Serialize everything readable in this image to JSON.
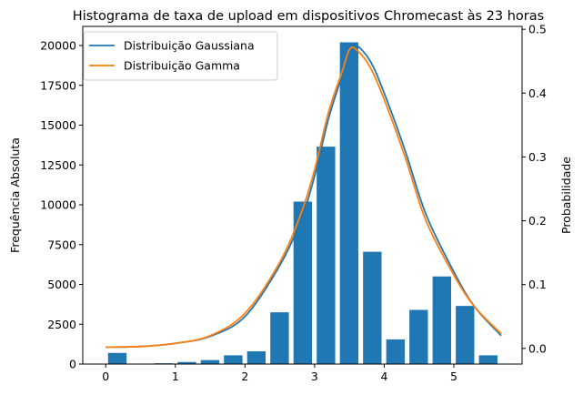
{
  "chart_data": {
    "type": "bar",
    "title": "Histograma de taxa de upload em dispositivos Chromecast às 23 horas",
    "xlabel": "",
    "ylabel": "Frequência Absoluta",
    "y2label": "Probabilidade",
    "xlim": [
      -0.33,
      5.98
    ],
    "ylim": [
      0,
      21200
    ],
    "y2lim": [
      -0.0245,
      0.5045
    ],
    "x_ticks": [
      0,
      1,
      2,
      3,
      4,
      5
    ],
    "y_ticks": [
      0,
      2500,
      5000,
      7500,
      10000,
      12500,
      15000,
      17500,
      20000
    ],
    "y2_ticks": [
      0.0,
      0.1,
      0.2,
      0.3,
      0.4,
      0.5
    ],
    "grid": false,
    "legend_position": "top-left",
    "bar_width": 0.266,
    "histogram": {
      "color": "#1f77b4",
      "bars": [
        {
          "x": 0.166,
          "value": 700
        },
        {
          "x": 0.832,
          "value": 50
        },
        {
          "x": 1.165,
          "value": 130
        },
        {
          "x": 1.498,
          "value": 250
        },
        {
          "x": 1.831,
          "value": 550
        },
        {
          "x": 2.164,
          "value": 800
        },
        {
          "x": 2.497,
          "value": 3250
        },
        {
          "x": 2.83,
          "value": 10200
        },
        {
          "x": 3.163,
          "value": 13650
        },
        {
          "x": 3.496,
          "value": 20200
        },
        {
          "x": 3.829,
          "value": 7050
        },
        {
          "x": 4.162,
          "value": 1550
        },
        {
          "x": 4.495,
          "value": 3400
        },
        {
          "x": 4.828,
          "value": 5500
        },
        {
          "x": 5.161,
          "value": 3650
        },
        {
          "x": 5.494,
          "value": 550
        }
      ]
    },
    "series": [
      {
        "name": "Distribuição Gaussiana",
        "color": "#1f77b4",
        "x": [
          0,
          0.5,
          1,
          1.5,
          2,
          2.5,
          2.8,
          3,
          3.2,
          3.4,
          3.5,
          3.6,
          3.8,
          4,
          4.3,
          4.6,
          5,
          5.3,
          5.68
        ],
        "values": [
          0.002,
          0.003,
          0.008,
          0.019,
          0.05,
          0.13,
          0.2,
          0.27,
          0.36,
          0.43,
          0.47,
          0.475,
          0.45,
          0.4,
          0.31,
          0.21,
          0.12,
          0.065,
          0.02
        ]
      },
      {
        "name": "Distribuição Gamma",
        "color": "#ff7f0e",
        "x": [
          0,
          0.5,
          1,
          1.5,
          2,
          2.5,
          2.8,
          3,
          3.2,
          3.4,
          3.5,
          3.6,
          3.8,
          4,
          4.3,
          4.6,
          5,
          5.3,
          5.68
        ],
        "values": [
          0.002,
          0.003,
          0.008,
          0.02,
          0.055,
          0.135,
          0.21,
          0.28,
          0.37,
          0.435,
          0.468,
          0.468,
          0.44,
          0.39,
          0.3,
          0.2,
          0.115,
          0.065,
          0.023
        ]
      }
    ]
  }
}
